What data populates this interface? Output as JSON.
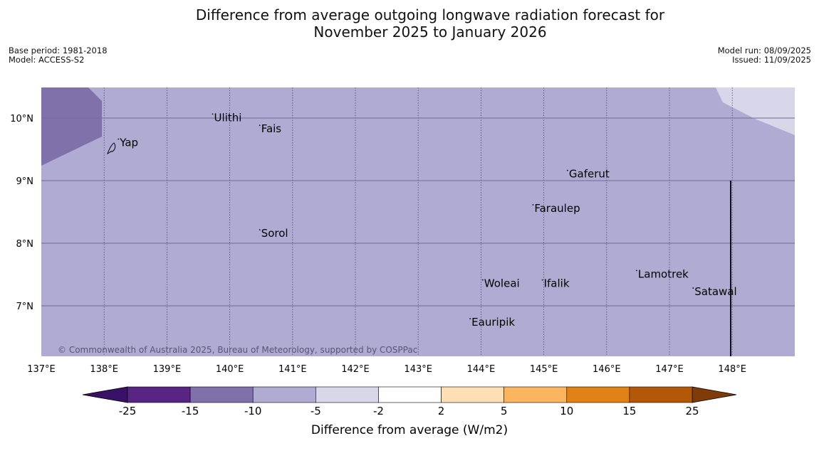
{
  "title_line1": "Difference from average outgoing longwave radiation forecast for",
  "title_line2": "November 2025 to January 2026",
  "meta_left": [
    "Base period: 1981-2018",
    "Model: ACCESS-S2"
  ],
  "meta_right": [
    "Model run: 08/09/2025",
    "Issued: 11/09/2025"
  ],
  "copyright": "© Commonwealth of Australia 2025, Bureau of Meteorology, supported by COSPPac",
  "background_anomaly_color": "#b0abd2",
  "colors": {
    "lt-25": "#3a1168",
    "-25_-15": "#592585",
    "-15_-10": "#8071ab",
    "-10_-5": "#b0abd2",
    "-5_-2": "#d7d7e9",
    "-2_2": "#ffffff",
    "2_5": "#fddfb5",
    "5_10": "#fbb55f",
    "10_15": "#e28115",
    "15_25": "#b35807",
    "gt25": "#7f3b08"
  },
  "map": {
    "lon_range": [
      137,
      149
    ],
    "lat_range": [
      6.2,
      10.5
    ],
    "lon_ticks": [
      "137°E",
      "138°E",
      "139°E",
      "140°E",
      "141°E",
      "142°E",
      "143°E",
      "144°E",
      "145°E",
      "146°E",
      "147°E",
      "148°E"
    ],
    "lat_ticks": [
      "10°N",
      "9°N",
      "8°N",
      "7°N"
    ],
    "places": [
      {
        "name": "Yap",
        "lon": 138.25,
        "lat": 9.55
      },
      {
        "name": "Ulithi",
        "lon": 139.75,
        "lat": 9.95
      },
      {
        "name": "Fais",
        "lon": 140.5,
        "lat": 9.77
      },
      {
        "name": "Gaferut",
        "lon": 145.4,
        "lat": 9.05
      },
      {
        "name": "Faraulep",
        "lon": 144.85,
        "lat": 8.5
      },
      {
        "name": "Sorol",
        "lon": 140.5,
        "lat": 8.1
      },
      {
        "name": "Lamotrek",
        "lon": 146.5,
        "lat": 7.45
      },
      {
        "name": "Woleai",
        "lon": 144.05,
        "lat": 7.3
      },
      {
        "name": "Ifalik",
        "lon": 145.0,
        "lat": 7.3
      },
      {
        "name": "Satawal",
        "lon": 147.4,
        "lat": 7.17
      },
      {
        "name": "Eauripik",
        "lon": 143.85,
        "lat": 6.68
      }
    ]
  },
  "colorbar": {
    "labels": [
      "-25",
      "-15",
      "-10",
      "-5",
      "-2",
      "2",
      "5",
      "10",
      "15",
      "25"
    ],
    "title": "Difference from average (W/m2)"
  }
}
